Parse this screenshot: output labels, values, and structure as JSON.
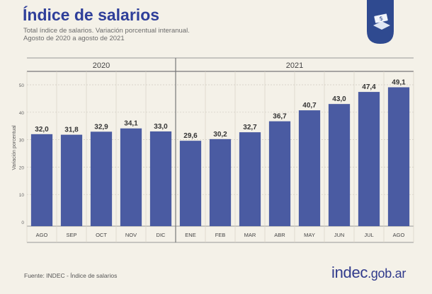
{
  "header": {
    "title": "Índice de salarios",
    "subtitle_line1": "Total índice de salarios. Variación porcentual interanual.",
    "subtitle_line2": "Agosto de 2020 a agosto de 2021"
  },
  "footer": {
    "source": "Fuente: INDEC - Índice de salarios",
    "logo_main": "indec",
    "logo_domain": ".gob.ar"
  },
  "icons": {
    "badge": "salary-money-icon"
  },
  "colors": {
    "bar": "#4a5ba2",
    "title": "#2f3f9a",
    "background": "#f4f1e8"
  },
  "chart_data": {
    "type": "bar",
    "year_groups": [
      {
        "label": "2020",
        "count": 5
      },
      {
        "label": "2021",
        "count": 8
      }
    ],
    "categories": [
      "AGO",
      "SEP",
      "OCT",
      "NOV",
      "DIC",
      "ENE",
      "FEB",
      "MAR",
      "ABR",
      "MAY",
      "JUN",
      "JUL",
      "AGO"
    ],
    "values": [
      32.0,
      31.8,
      32.9,
      34.1,
      33.0,
      29.6,
      30.2,
      32.7,
      36.7,
      40.7,
      43.0,
      47.4,
      49.1
    ],
    "data_labels": [
      "32,0",
      "31,8",
      "32,9",
      "34,1",
      "33,0",
      "29,6",
      "30,2",
      "32,7",
      "36,7",
      "40,7",
      "43,0",
      "47,4",
      "49,1"
    ],
    "ylabel": "Variación porcentual",
    "yticks": [
      0,
      10,
      20,
      30,
      40,
      50
    ],
    "ylim": [
      0,
      50
    ],
    "grid": true
  }
}
